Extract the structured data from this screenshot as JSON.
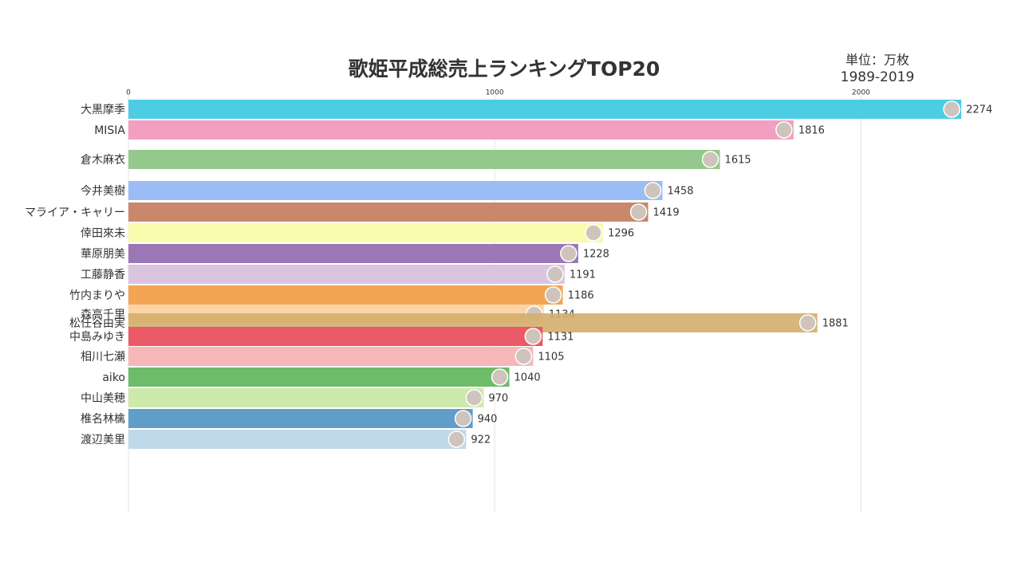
{
  "chart_data": {
    "type": "bar",
    "orientation": "horizontal",
    "title": "歌姫平成総売上ランキングTOP20",
    "unit": "単位：万枚",
    "period": "1989-2019",
    "categories": [
      "大黒摩季",
      "MISIA",
      "倉木麻衣",
      "今井美樹",
      "マライア・キャリー",
      "倖田來未",
      "華原朋美",
      "工藤静香",
      "竹内まりや",
      "森高千里",
      "松任谷由実",
      "中島みゆき",
      "相川七瀬",
      "aiko",
      "中山美穂",
      "椎名林檎",
      "渡辺美里"
    ],
    "values": [
      2274,
      1816,
      1615,
      1458,
      1419,
      1296,
      1228,
      1191,
      1186,
      1134,
      1881,
      1131,
      1105,
      1040,
      970,
      940,
      922
    ],
    "colors": [
      "#4dcde4",
      "#f39fc0",
      "#93c98c",
      "#9bbcf5",
      "#c9876b",
      "#fafaaf",
      "#9b78b5",
      "#d9c5e0",
      "#f3a554",
      "#fbd4a6",
      "#d3ae6e",
      "#e95a66",
      "#f6b7b8",
      "#6cbc6a",
      "#cde9ab",
      "#5f9ec8",
      "#c0d9e8"
    ],
    "xlim": [
      0,
      2400
    ],
    "xticks": [
      0,
      1000,
      2000
    ],
    "grid": true
  }
}
